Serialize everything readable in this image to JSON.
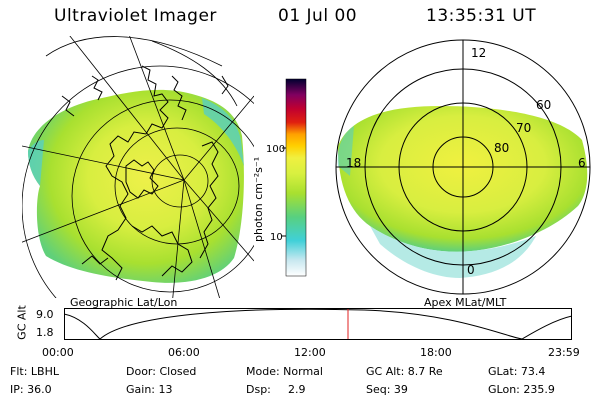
{
  "header": {
    "instrument": "Ultraviolet Imager",
    "date": "01 Jul 00",
    "time": "13:35:31 UT"
  },
  "colorbar": {
    "unit_label": "photon cm⁻²s⁻¹",
    "ticks": [
      "100",
      "10"
    ],
    "colors": [
      "#ffffff",
      "#c8e8f0",
      "#40d0d8",
      "#58d080",
      "#a8e030",
      "#d8f040",
      "#f0f040",
      "#ffa000",
      "#e02010",
      "#c00030",
      "#800060",
      "#300050",
      "#000030"
    ]
  },
  "geo_panel": {
    "caption": "Geographic Lat/Lon"
  },
  "apex_panel": {
    "caption": "Apex MLat/MLT",
    "mlt_labels": {
      "top": "12",
      "left": "18",
      "right": "6",
      "bottom": "0"
    },
    "lat_labels": [
      "60",
      "70",
      "80"
    ]
  },
  "altitude_plot": {
    "y_label": "GC Alt",
    "y_ticks": [
      "9.0",
      "1.8"
    ],
    "x_ticks": [
      "00:00",
      "06:00",
      "12:00",
      "18:00",
      "23:59"
    ],
    "marker_color": "#e02020"
  },
  "status": {
    "flt": "Flt: LBHL",
    "ip": "IP: 36.0",
    "door": "Door: Closed",
    "gain": "Gain: 13",
    "mode": "Mode: Normal",
    "dsp": "Dsp:",
    "dsp_value": "2.9",
    "gc_alt": "GC Alt: 8.7 Re",
    "seq": "Seq: 39",
    "glat": "GLat:  73.4",
    "glon": "GLon: 235.9"
  }
}
